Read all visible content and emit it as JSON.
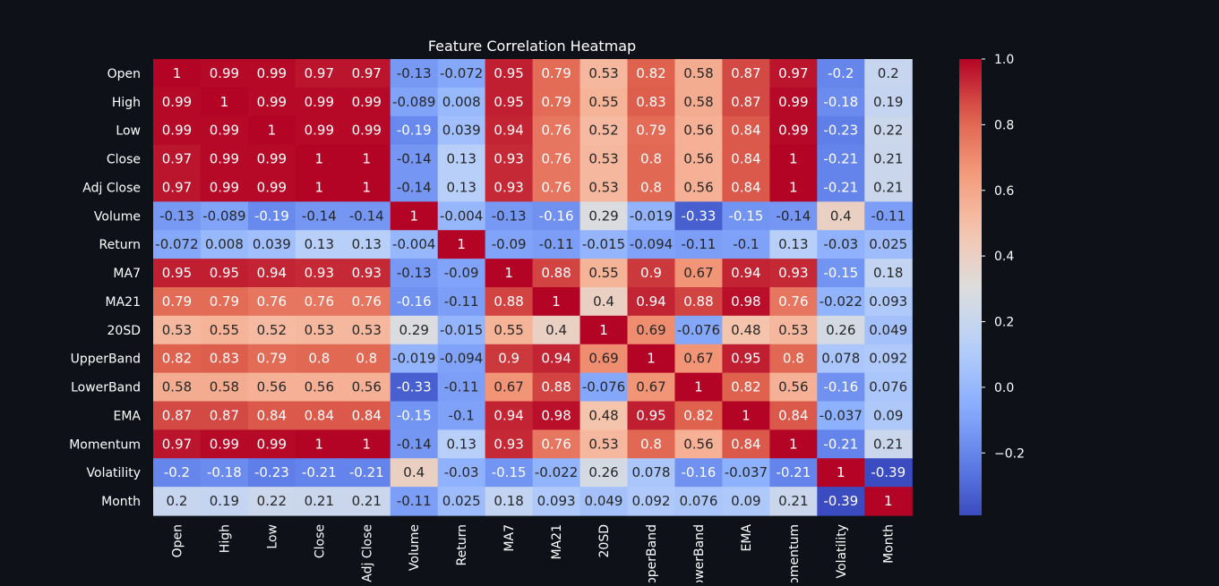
{
  "chart_data": {
    "type": "heatmap",
    "title": "Feature Correlation Heatmap",
    "colormap": "coolwarm",
    "color_range": [
      -0.39,
      1.0
    ],
    "annotated": true,
    "grid": false,
    "background_color": "#0e1117",
    "text_color": "#ffffff",
    "x_labels": [
      "Open",
      "High",
      "Low",
      "Close",
      "Adj Close",
      "Volume",
      "Return",
      "MA7",
      "MA21",
      "20SD",
      "UpperBand",
      "LowerBand",
      "EMA",
      "Momentum",
      "Volatility",
      "Month"
    ],
    "y_labels": [
      "Open",
      "High",
      "Low",
      "Close",
      "Adj Close",
      "Volume",
      "Return",
      "MA7",
      "MA21",
      "20SD",
      "UpperBand",
      "LowerBand",
      "EMA",
      "Momentum",
      "Volatility",
      "Month"
    ],
    "values": [
      [
        1,
        0.99,
        0.99,
        0.97,
        0.97,
        -0.13,
        -0.072,
        0.95,
        0.79,
        0.53,
        0.82,
        0.58,
        0.87,
        0.97,
        -0.2,
        0.2
      ],
      [
        0.99,
        1,
        0.99,
        0.99,
        0.99,
        -0.089,
        0.008,
        0.95,
        0.79,
        0.55,
        0.83,
        0.58,
        0.87,
        0.99,
        -0.18,
        0.19
      ],
      [
        0.99,
        0.99,
        1,
        0.99,
        0.99,
        -0.19,
        0.039,
        0.94,
        0.76,
        0.52,
        0.79,
        0.56,
        0.84,
        0.99,
        -0.23,
        0.22
      ],
      [
        0.97,
        0.99,
        0.99,
        1,
        1,
        -0.14,
        0.13,
        0.93,
        0.76,
        0.53,
        0.8,
        0.56,
        0.84,
        1,
        -0.21,
        0.21
      ],
      [
        0.97,
        0.99,
        0.99,
        1,
        1,
        -0.14,
        0.13,
        0.93,
        0.76,
        0.53,
        0.8,
        0.56,
        0.84,
        1,
        -0.21,
        0.21
      ],
      [
        -0.13,
        -0.089,
        -0.19,
        -0.14,
        -0.14,
        1,
        -0.004,
        -0.13,
        -0.16,
        0.29,
        -0.019,
        -0.33,
        -0.15,
        -0.14,
        0.4,
        -0.11
      ],
      [
        -0.072,
        0.008,
        0.039,
        0.13,
        0.13,
        -0.004,
        1,
        -0.09,
        -0.11,
        -0.015,
        -0.094,
        -0.11,
        -0.1,
        0.13,
        -0.03,
        0.025
      ],
      [
        0.95,
        0.95,
        0.94,
        0.93,
        0.93,
        -0.13,
        -0.09,
        1,
        0.88,
        0.55,
        0.9,
        0.67,
        0.94,
        0.93,
        -0.15,
        0.18
      ],
      [
        0.79,
        0.79,
        0.76,
        0.76,
        0.76,
        -0.16,
        -0.11,
        0.88,
        1,
        0.4,
        0.94,
        0.88,
        0.98,
        0.76,
        -0.022,
        0.093
      ],
      [
        0.53,
        0.55,
        0.52,
        0.53,
        0.53,
        0.29,
        -0.015,
        0.55,
        0.4,
        1,
        0.69,
        -0.076,
        0.48,
        0.53,
        0.26,
        0.049
      ],
      [
        0.82,
        0.83,
        0.79,
        0.8,
        0.8,
        -0.019,
        -0.094,
        0.9,
        0.94,
        0.69,
        1,
        0.67,
        0.95,
        0.8,
        0.078,
        0.092
      ],
      [
        0.58,
        0.58,
        0.56,
        0.56,
        0.56,
        -0.33,
        -0.11,
        0.67,
        0.88,
        -0.076,
        0.67,
        1,
        0.82,
        0.56,
        -0.16,
        0.076
      ],
      [
        0.87,
        0.87,
        0.84,
        0.84,
        0.84,
        -0.15,
        -0.1,
        0.94,
        0.98,
        0.48,
        0.95,
        0.82,
        1,
        0.84,
        -0.037,
        0.09
      ],
      [
        0.97,
        0.99,
        0.99,
        1,
        1,
        -0.14,
        0.13,
        0.93,
        0.76,
        0.53,
        0.8,
        0.56,
        0.84,
        1,
        -0.21,
        0.21
      ],
      [
        -0.2,
        -0.18,
        -0.23,
        -0.21,
        -0.21,
        0.4,
        -0.03,
        -0.15,
        -0.022,
        0.26,
        0.078,
        -0.16,
        -0.037,
        -0.21,
        1,
        -0.39
      ],
      [
        0.2,
        0.19,
        0.22,
        0.21,
        0.21,
        -0.11,
        0.025,
        0.18,
        0.093,
        0.049,
        0.092,
        0.076,
        0.09,
        0.21,
        -0.39,
        1
      ]
    ],
    "colorbar": {
      "ticks": [
        1.0,
        0.8,
        0.6,
        0.4,
        0.2,
        0.0,
        -0.2
      ],
      "tick_labels": [
        "1.0",
        "0.8",
        "0.6",
        "0.4",
        "0.2",
        "0.0",
        "−0.2"
      ]
    }
  }
}
